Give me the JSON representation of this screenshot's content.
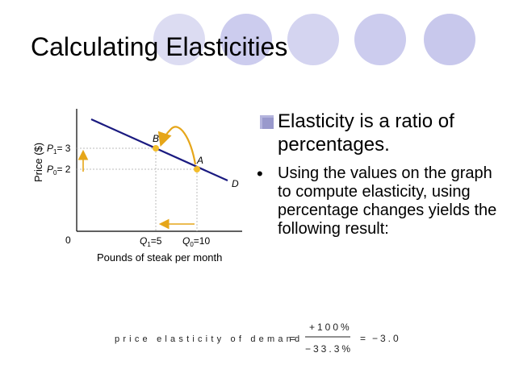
{
  "slide": {
    "title": "Calculating Elasticities",
    "colors": {
      "circle": "#ccccee",
      "line": "#1a1a80",
      "arrow": "#e6a619",
      "point": "#f3bd2a",
      "guide": "#bbbbbb"
    }
  },
  "bullets": [
    {
      "text": "Elasticity is a ratio of percentages."
    },
    {
      "text": "Using the values on the graph to compute elasticity, using percentage changes yields the following result:"
    }
  ],
  "graph": {
    "ylabel": "Price ($)",
    "xlabel": "Pounds of steak per month",
    "origin": "0",
    "p1_label": "P",
    "p1_sub": "1",
    "p1_value": "= 3",
    "p0_label": "P",
    "p0_sub": "0",
    "p0_value": "= 2",
    "q1_label": "Q",
    "q1_sub": "1",
    "q1_value": "=5",
    "q0_label": "Q",
    "q0_sub": "0",
    "q0_value": "=10",
    "point_b": "B",
    "point_a": "A",
    "curve": "D"
  },
  "formula": {
    "lhs": "price elasticity of demand",
    "eq1": "=",
    "numerator": "+100%",
    "denominator": "−33.3%",
    "eq2": "=",
    "result": "−3.0"
  }
}
